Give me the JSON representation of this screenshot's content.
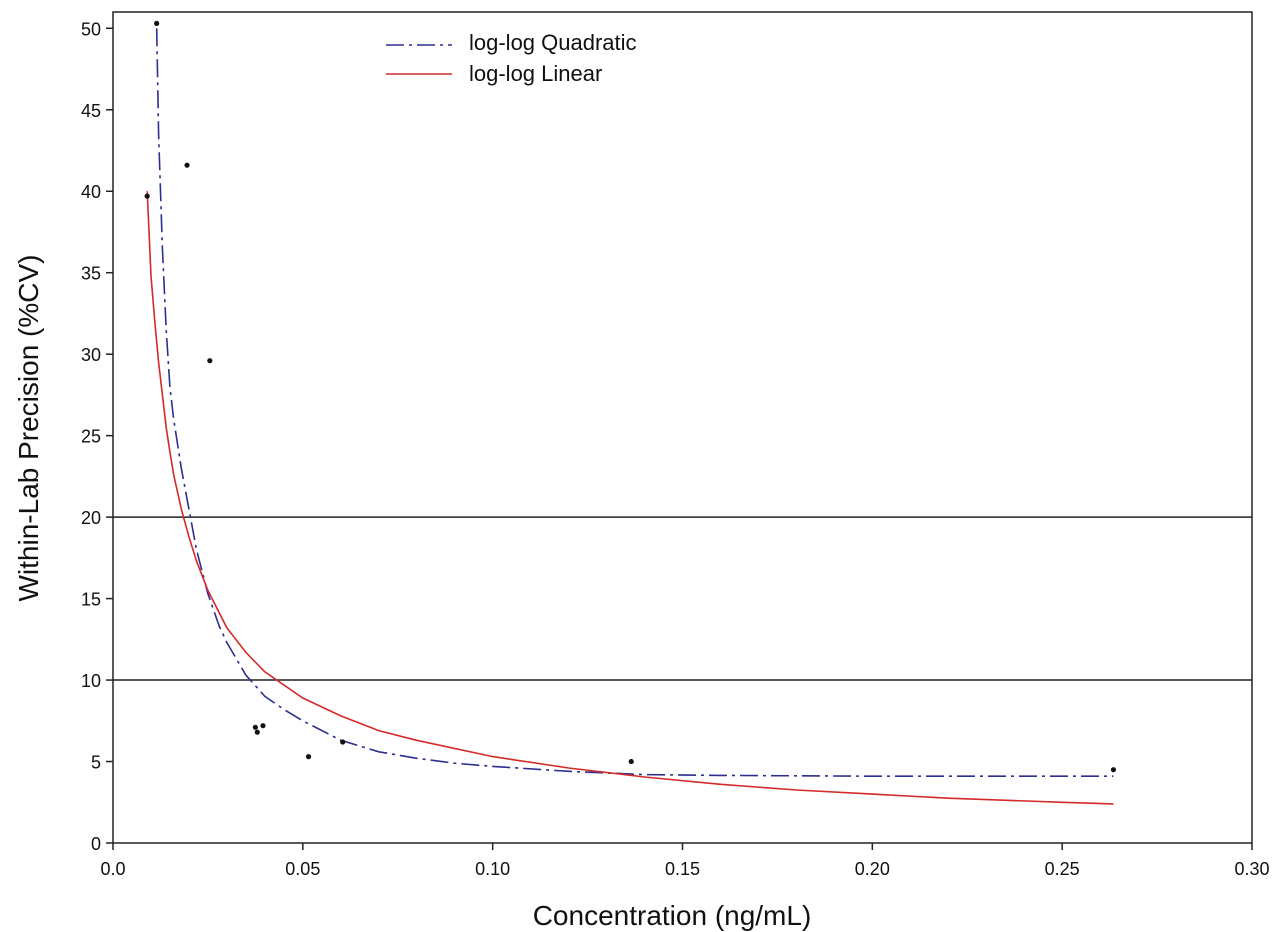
{
  "chart_data": {
    "type": "scatter",
    "title": "",
    "xlabel": "Concentration (ng/mL)",
    "ylabel": "Within-Lab Precision (%CV)",
    "xlim": [
      0.0,
      0.3
    ],
    "ylim": [
      0,
      51
    ],
    "x_ticks": [
      "0.0",
      "0.05",
      "0.10",
      "0.15",
      "0.20",
      "0.25",
      "0.30"
    ],
    "y_ticks": [
      "0",
      "5",
      "10",
      "15",
      "20",
      "25",
      "30",
      "35",
      "40",
      "45",
      "50"
    ],
    "grid": false,
    "reference_lines": [
      10,
      20
    ],
    "legend_position": "top-center",
    "points": [
      {
        "x": 0.009,
        "y": 39.7
      },
      {
        "x": 0.0115,
        "y": 50.3
      },
      {
        "x": 0.0195,
        "y": 41.6
      },
      {
        "x": 0.0255,
        "y": 29.6
      },
      {
        "x": 0.0375,
        "y": 7.1
      },
      {
        "x": 0.038,
        "y": 6.8
      },
      {
        "x": 0.0395,
        "y": 7.2
      },
      {
        "x": 0.0515,
        "y": 5.3
      },
      {
        "x": 0.0605,
        "y": 6.2
      },
      {
        "x": 0.1365,
        "y": 5.0
      },
      {
        "x": 0.2635,
        "y": 4.5
      }
    ],
    "series": [
      {
        "name": "log-log Quadratic",
        "style": "dash-dot",
        "color": "#2b2f8f",
        "x": [
          0.0115,
          0.012,
          0.013,
          0.014,
          0.015,
          0.016,
          0.018,
          0.02,
          0.022,
          0.025,
          0.028,
          0.03,
          0.035,
          0.04,
          0.045,
          0.05,
          0.06,
          0.07,
          0.08,
          0.09,
          0.1,
          0.12,
          0.14,
          0.16,
          0.2,
          0.25,
          0.2635
        ],
        "values": [
          50.0,
          43.5,
          36.5,
          31.5,
          28.0,
          26.0,
          23.0,
          20.5,
          18.0,
          15.3,
          13.3,
          12.3,
          10.3,
          9.0,
          8.2,
          7.5,
          6.3,
          5.6,
          5.2,
          4.9,
          4.7,
          4.4,
          4.2,
          4.15,
          4.1,
          4.1,
          4.1
        ]
      },
      {
        "name": "log-log Linear",
        "style": "solid",
        "color": "#d42a2a",
        "x": [
          0.009,
          0.01,
          0.011,
          0.012,
          0.013,
          0.014,
          0.015,
          0.016,
          0.018,
          0.02,
          0.022,
          0.025,
          0.03,
          0.035,
          0.04,
          0.05,
          0.06,
          0.07,
          0.08,
          0.1,
          0.12,
          0.14,
          0.16,
          0.18,
          0.2,
          0.22,
          0.25,
          0.2635
        ],
        "values": [
          40.0,
          34.8,
          32.0,
          29.5,
          27.5,
          25.5,
          24.0,
          22.6,
          20.5,
          18.8,
          17.3,
          15.5,
          13.2,
          11.7,
          10.5,
          8.9,
          7.8,
          6.9,
          6.3,
          5.3,
          4.6,
          4.05,
          3.6,
          3.25,
          3.0,
          2.75,
          2.5,
          2.4
        ]
      }
    ]
  }
}
